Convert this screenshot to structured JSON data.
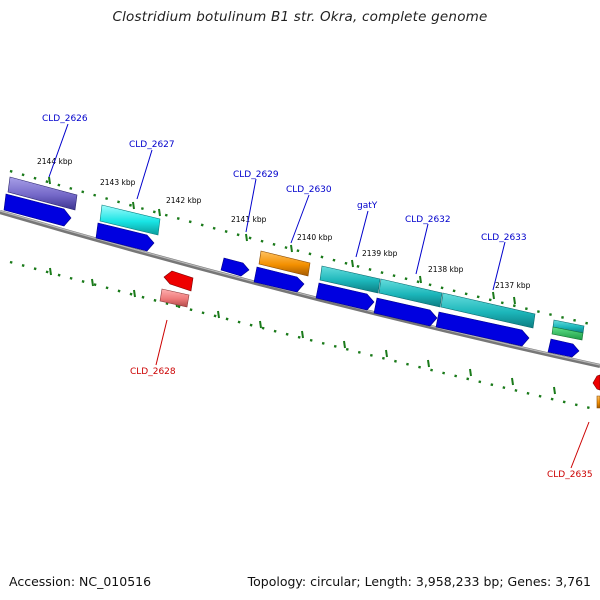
{
  "title": "Clostridium botulinum B1 str. Okra, complete genome",
  "accession_text": "Accession: NC_010516",
  "topology_text": "Topology: circular; Length: 3,958,233 bp; Genes: 3,761",
  "colors": {
    "label_above": "#0000cc",
    "label_below": "#cc0000",
    "backbone": "#777777",
    "tick": "#1a7a1a",
    "cds": "#0000e0"
  },
  "kbp_labels": [
    "2144 kbp",
    "2143 kbp",
    "2142 kbp",
    "2141 kbp",
    "2140 kbp",
    "2139 kbp",
    "2138 kbp",
    "2137 kbp"
  ],
  "genes_above": [
    "CLD_2626",
    "CLD_2627",
    "CLD_2629",
    "CLD_2630",
    "gatY",
    "CLD_2632",
    "CLD_2633"
  ],
  "genes_below": [
    "CLD_2628",
    "CLD_2635"
  ]
}
